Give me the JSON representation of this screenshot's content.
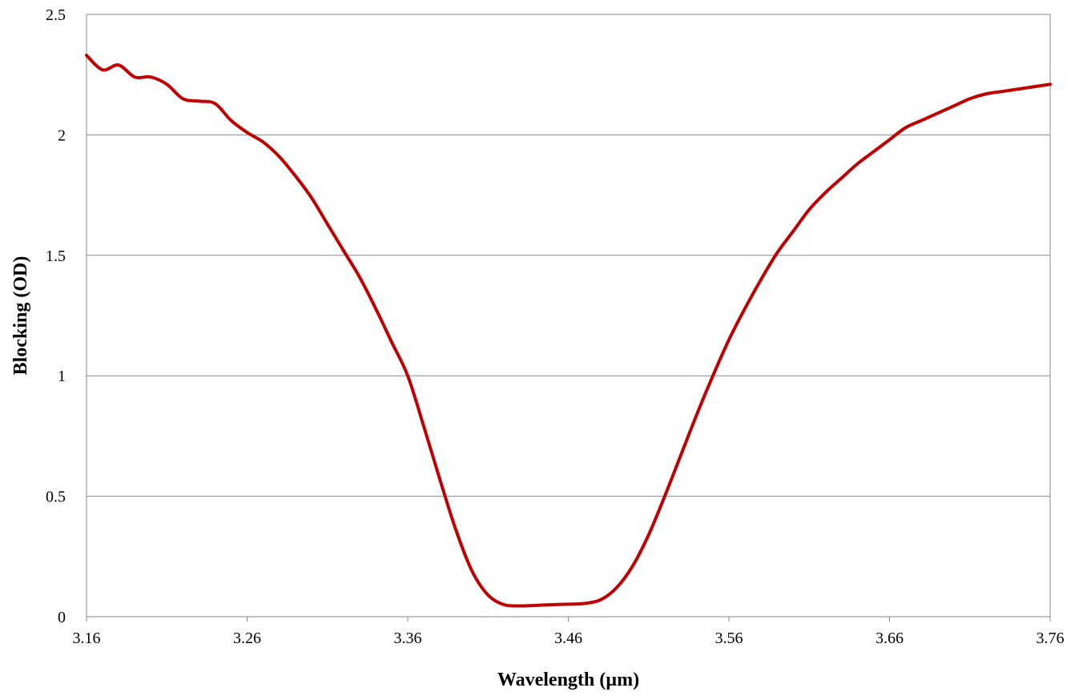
{
  "chart_data": {
    "type": "line",
    "title": "",
    "xlabel": "Wavelength (µm)",
    "ylabel": "Blocking (OD)",
    "xlim": [
      3.16,
      3.76
    ],
    "ylim": [
      0,
      2.5
    ],
    "x_ticks": [
      "3.16",
      "3.26",
      "3.36",
      "3.46",
      "3.56",
      "3.66",
      "3.76"
    ],
    "y_ticks": [
      "0",
      "0.5",
      "1",
      "1.5",
      "2",
      "2.5"
    ],
    "grid": "horizontal",
    "legend": "none",
    "series": [
      {
        "color": "#C00000",
        "x": [
          3.16,
          3.17,
          3.18,
          3.19,
          3.2,
          3.21,
          3.22,
          3.23,
          3.24,
          3.25,
          3.26,
          3.27,
          3.28,
          3.29,
          3.3,
          3.31,
          3.32,
          3.33,
          3.34,
          3.35,
          3.36,
          3.37,
          3.38,
          3.39,
          3.4,
          3.41,
          3.42,
          3.43,
          3.44,
          3.45,
          3.46,
          3.47,
          3.48,
          3.49,
          3.5,
          3.51,
          3.52,
          3.53,
          3.54,
          3.55,
          3.56,
          3.57,
          3.58,
          3.59,
          3.6,
          3.61,
          3.62,
          3.63,
          3.64,
          3.65,
          3.66,
          3.67,
          3.68,
          3.69,
          3.7,
          3.71,
          3.72,
          3.73,
          3.74,
          3.75,
          3.76
        ],
        "y": [
          2.33,
          2.27,
          2.29,
          2.24,
          2.24,
          2.21,
          2.15,
          2.14,
          2.13,
          2.06,
          2.01,
          1.97,
          1.91,
          1.83,
          1.74,
          1.63,
          1.52,
          1.41,
          1.28,
          1.14,
          1.0,
          0.79,
          0.57,
          0.36,
          0.19,
          0.09,
          0.05,
          0.045,
          0.047,
          0.05,
          0.052,
          0.055,
          0.07,
          0.12,
          0.21,
          0.34,
          0.5,
          0.67,
          0.84,
          1.0,
          1.15,
          1.28,
          1.4,
          1.51,
          1.6,
          1.69,
          1.76,
          1.82,
          1.88,
          1.93,
          1.98,
          2.03,
          2.06,
          2.09,
          2.12,
          2.15,
          2.17,
          2.18,
          2.19,
          2.2,
          2.21
        ]
      }
    ]
  }
}
